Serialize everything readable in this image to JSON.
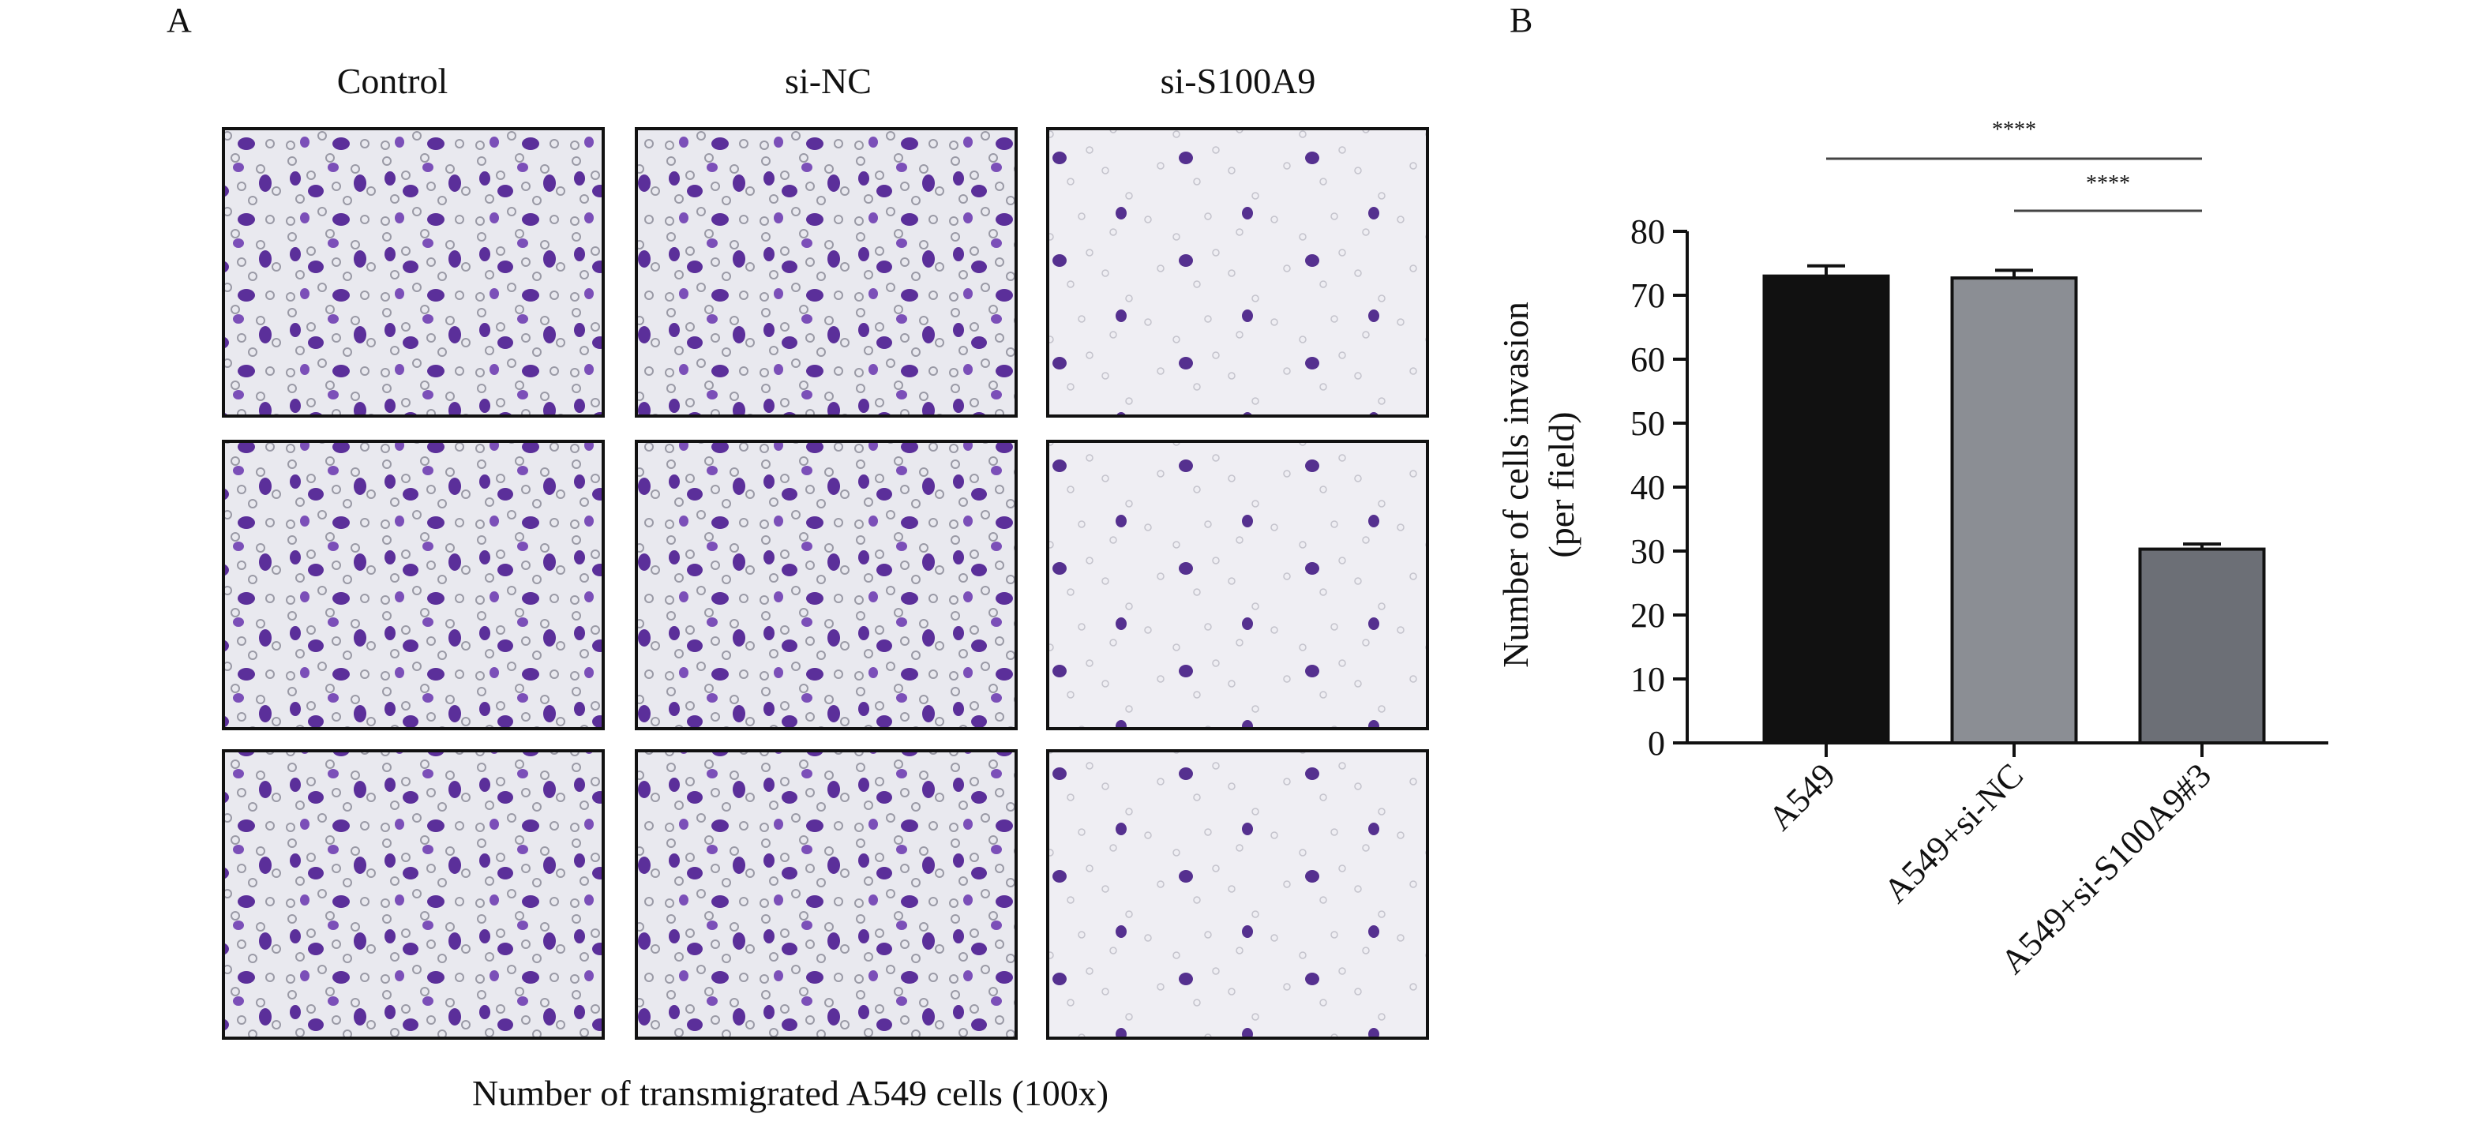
{
  "panel_a": {
    "label": "A",
    "columns": [
      "Control",
      "si-NC",
      "si-S100A9"
    ],
    "caption": "Number of transmigrated A549 cells (100x)"
  },
  "panel_b": {
    "label": "B"
  },
  "chart_data": {
    "type": "bar",
    "ylabel": [
      "Number of cells invasion",
      "(per field)"
    ],
    "categories": [
      "A549",
      "A549+si-NC",
      "A549+si-S100A9#3"
    ],
    "values": [
      73,
      72.7,
      30.3
    ],
    "errors": [
      1.6,
      1.2,
      0.8
    ],
    "colors": [
      "#111111",
      "#8b8e94",
      "#6c6f76"
    ],
    "ylim": [
      0,
      80
    ],
    "yticks": [
      0,
      10,
      20,
      30,
      40,
      50,
      60,
      70,
      80
    ],
    "annotations": [
      {
        "text": "****",
        "between": [
          "A549",
          "A549+si-S100A9#3"
        ]
      },
      {
        "text": "****",
        "between": [
          "A549+si-NC",
          "A549+si-S100A9#3"
        ]
      }
    ]
  }
}
